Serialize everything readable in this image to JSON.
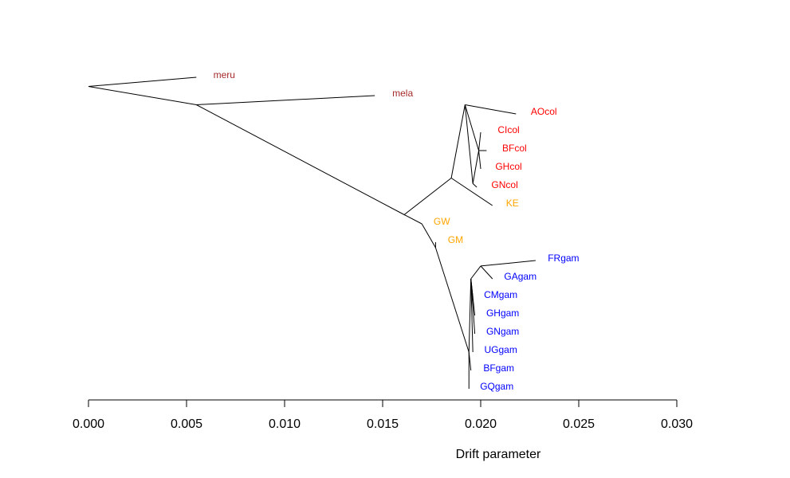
{
  "chart_data": {
    "type": "tree",
    "xlabel": "Drift parameter",
    "xlim": [
      0,
      0.03
    ],
    "xticks": [
      "0.000",
      "0.005",
      "0.010",
      "0.015",
      "0.020",
      "0.025",
      "0.030"
    ],
    "colors": {
      "outgroup": "#a52a2a",
      "coluzzii": "#ff0000",
      "intermediate": "#ffa500",
      "gambiae": "#0000ff",
      "edge": "#000000"
    },
    "nodes": [
      {
        "id": "root",
        "x": 0.0,
        "rank": 0.5
      },
      {
        "id": "n1",
        "x": 0.0055,
        "rank": 1.5
      },
      {
        "id": "n2",
        "x": 0.0161,
        "rank": 7.5
      },
      {
        "id": "n3",
        "x": 0.0185,
        "rank": 5.5
      },
      {
        "id": "n4",
        "x": 0.0192,
        "rank": 1.5
      },
      {
        "id": "n5",
        "x": 0.0196,
        "rank": 5.8
      },
      {
        "id": "n6",
        "x": 0.0199,
        "rank": 4.0
      },
      {
        "id": "n7",
        "x": 0.017,
        "rank": 8.0
      },
      {
        "id": "n8",
        "x": 0.0177,
        "rank": 9.3
      },
      {
        "id": "n9",
        "x": 0.0194,
        "rank": 15.0
      },
      {
        "id": "n10",
        "x": 0.02,
        "rank": 10.3
      },
      {
        "id": "n11",
        "x": 0.0195,
        "rank": 11.0
      }
    ],
    "edges": [
      [
        "root",
        "meru"
      ],
      [
        "root",
        "n1"
      ],
      [
        "n1",
        "mela"
      ],
      [
        "n1",
        "n2"
      ],
      [
        "n2",
        "n3"
      ],
      [
        "n2",
        "n7"
      ],
      [
        "n3",
        "n4"
      ],
      [
        "n3",
        "KE"
      ],
      [
        "n4",
        "AOcol"
      ],
      [
        "n4",
        "n5"
      ],
      [
        "n5",
        "n6"
      ],
      [
        "n7",
        "GW"
      ],
      [
        "n7",
        "n8"
      ],
      [
        "n8",
        "GM"
      ],
      [
        "n8",
        "n9"
      ],
      [
        "n9",
        "n11"
      ],
      [
        "n9",
        "GQgam"
      ],
      [
        "n11",
        "n10"
      ],
      [
        "n10",
        "FRgam"
      ],
      [
        "n10",
        "GAgam"
      ]
    ],
    "leaves": [
      {
        "label": "meru",
        "group": "outgroup",
        "x": 0.0055,
        "rank": 0
      },
      {
        "label": "mela",
        "group": "outgroup",
        "x": 0.0146,
        "rank": 1
      },
      {
        "label": "AOcol",
        "group": "coluzzii",
        "x": 0.0218,
        "rank": 2
      },
      {
        "label": "CIcol",
        "group": "coluzzii",
        "x": 0.02,
        "rank": 3
      },
      {
        "label": "BFcol",
        "group": "coluzzii",
        "x": 0.0203,
        "rank": 4
      },
      {
        "label": "GHcol",
        "group": "coluzzii",
        "x": 0.02,
        "rank": 5
      },
      {
        "label": "GNcol",
        "group": "coluzzii",
        "x": 0.0198,
        "rank": 6
      },
      {
        "label": "KE",
        "group": "intermediate",
        "x": 0.0206,
        "rank": 7
      },
      {
        "label": "GW",
        "group": "intermediate",
        "x": 0.017,
        "rank": 8
      },
      {
        "label": "GM",
        "group": "intermediate",
        "x": 0.0177,
        "rank": 9
      },
      {
        "label": "FRgam",
        "group": "gambiae",
        "x": 0.0228,
        "rank": 10
      },
      {
        "label": "GAgam",
        "group": "gambiae",
        "x": 0.0206,
        "rank": 11
      },
      {
        "label": "CMgam",
        "group": "gambiae",
        "x": 0.0196,
        "rank": 12
      },
      {
        "label": "GHgam",
        "group": "gambiae",
        "x": 0.0197,
        "rank": 13
      },
      {
        "label": "GNgam",
        "group": "gambiae",
        "x": 0.0197,
        "rank": 14
      },
      {
        "label": "UGgam",
        "group": "gambiae",
        "x": 0.0196,
        "rank": 15
      },
      {
        "label": "BFgam",
        "group": "gambiae",
        "x": 0.0195,
        "rank": 16
      },
      {
        "label": "GQgam",
        "group": "gambiae",
        "x": 0.0194,
        "rank": 17
      }
    ],
    "coluzzii_subtree": [
      [
        "n4",
        "n6"
      ],
      [
        "n6",
        "CIcol"
      ],
      [
        "n6",
        "BFcol"
      ],
      [
        "n6",
        "GHcol"
      ],
      [
        "n5",
        "GNcol"
      ]
    ],
    "gambiae_subtree": [
      [
        "n11",
        "CMgam"
      ],
      [
        "n11",
        "GHgam"
      ],
      [
        "n11",
        "GNgam"
      ],
      [
        "n11",
        "UGgam"
      ],
      [
        "n9",
        "BFgam"
      ]
    ]
  }
}
